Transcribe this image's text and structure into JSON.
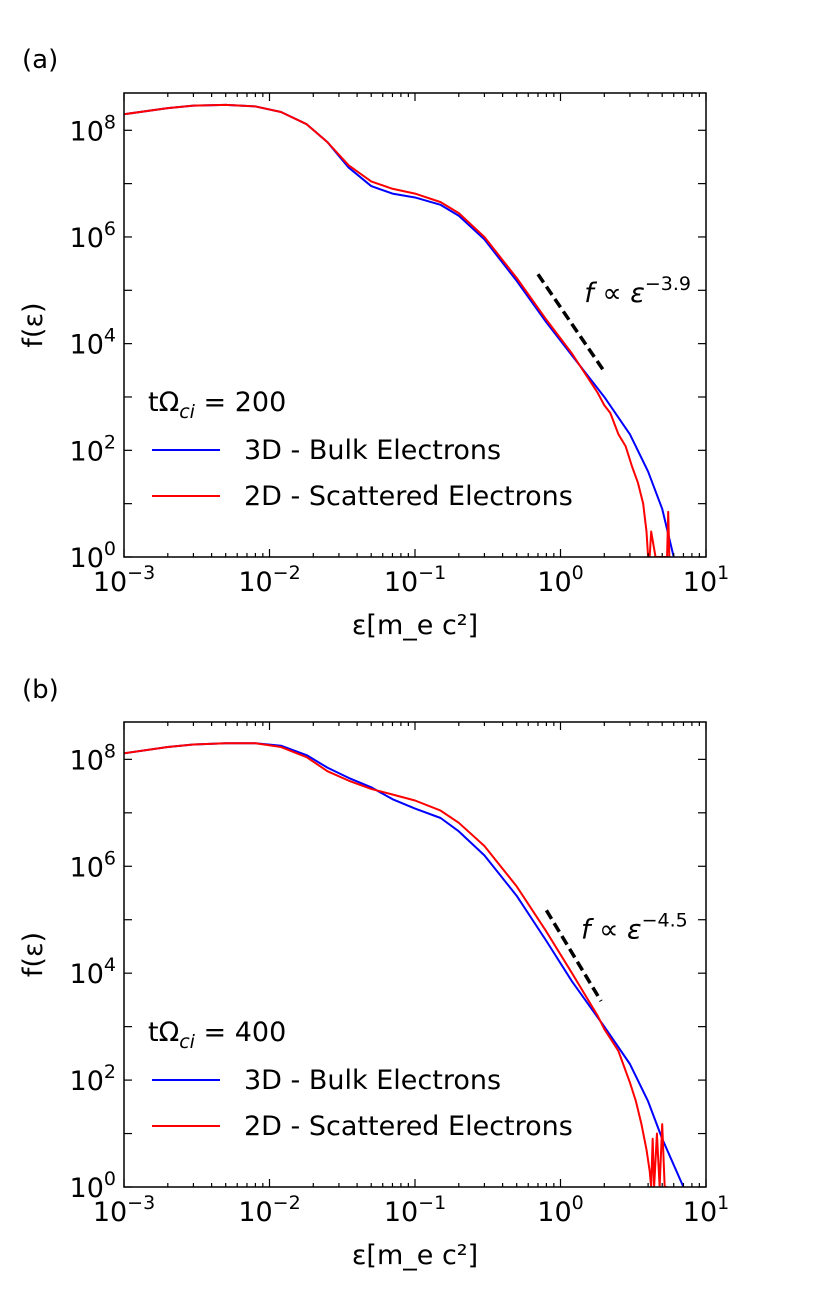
{
  "chart_data": [
    {
      "type": "line",
      "panel_label": "(a)",
      "xlabel": "ε[m_e c²]",
      "ylabel": "f(ε)",
      "xscale": "log",
      "yscale": "log",
      "xlim": [
        0.001,
        10
      ],
      "ylim": [
        1,
        500000000
      ],
      "x_ticks": [
        {
          "base": "10",
          "exp": "−3"
        },
        {
          "base": "10",
          "exp": "−2"
        },
        {
          "base": "10",
          "exp": "−1"
        },
        {
          "base": "10",
          "exp": "0"
        },
        {
          "base": "10",
          "exp": "1"
        }
      ],
      "y_ticks": [
        {
          "base": "10",
          "exp": "0"
        },
        {
          "base": "10",
          "exp": "2"
        },
        {
          "base": "10",
          "exp": "4"
        },
        {
          "base": "10",
          "exp": "6"
        },
        {
          "base": "10",
          "exp": "8"
        }
      ],
      "time_label": "tΩ",
      "time_sub": "ci",
      "time_value": " = 200",
      "legend_position": "lower-left",
      "series": [
        {
          "name": "3D - Bulk Electrons",
          "color": "#0000ff",
          "x": [
            0.001,
            0.002,
            0.003,
            0.005,
            0.008,
            0.012,
            0.018,
            0.025,
            0.035,
            0.05,
            0.07,
            0.1,
            0.15,
            0.2,
            0.3,
            0.5,
            0.8,
            1.2,
            2.0,
            3.0,
            4.0,
            5.0,
            6.0
          ],
          "y": [
            200000000,
            260000000,
            290000000,
            300000000,
            280000000,
            220000000,
            130000000,
            60000000,
            20000000,
            9000000,
            6500000,
            5500000,
            4000000,
            2500000,
            900000,
            150000,
            25000,
            6000,
            1000,
            200,
            40,
            8,
            1
          ]
        },
        {
          "name": "2D - Scattered Electrons",
          "color": "#ff0000",
          "x": [
            0.001,
            0.002,
            0.003,
            0.005,
            0.008,
            0.012,
            0.018,
            0.025,
            0.035,
            0.05,
            0.07,
            0.1,
            0.15,
            0.2,
            0.3,
            0.5,
            0.8,
            1.2,
            1.8,
            2.0,
            2.2,
            2.5,
            2.8,
            3.1,
            3.4,
            3.7,
            3.9,
            4.0,
            4.1,
            4.2,
            4.5,
            5.0,
            5.4,
            5.5,
            5.6
          ],
          "y": [
            200000000,
            260000000,
            290000000,
            300000000,
            280000000,
            220000000,
            130000000,
            60000000,
            22000000,
            11000000,
            8000000,
            6500000,
            4500000,
            2800000,
            1000000,
            170000,
            28000,
            6500,
            1200,
            700,
            500,
            200,
            120,
            50,
            25,
            10,
            3,
            1,
            1,
            3,
            1,
            1,
            1,
            7,
            1
          ]
        }
      ],
      "power_law": {
        "label": "f ∝ ε",
        "exponent": "−3.9",
        "x": [
          0.7,
          2.0
        ],
        "y": [
          200000,
          3000
        ]
      }
    },
    {
      "type": "line",
      "panel_label": "(b)",
      "xlabel": "ε[m_e c²]",
      "ylabel": "f(ε)",
      "xscale": "log",
      "yscale": "log",
      "xlim": [
        0.001,
        10
      ],
      "ylim": [
        1,
        500000000
      ],
      "x_ticks": [
        {
          "base": "10",
          "exp": "−3"
        },
        {
          "base": "10",
          "exp": "−2"
        },
        {
          "base": "10",
          "exp": "−1"
        },
        {
          "base": "10",
          "exp": "0"
        },
        {
          "base": "10",
          "exp": "1"
        }
      ],
      "y_ticks": [
        {
          "base": "10",
          "exp": "0"
        },
        {
          "base": "10",
          "exp": "2"
        },
        {
          "base": "10",
          "exp": "4"
        },
        {
          "base": "10",
          "exp": "6"
        },
        {
          "base": "10",
          "exp": "8"
        }
      ],
      "time_label": "tΩ",
      "time_sub": "ci",
      "time_value": " = 400",
      "legend_position": "lower-left",
      "series": [
        {
          "name": "3D - Bulk Electrons",
          "color": "#0000ff",
          "x": [
            0.001,
            0.002,
            0.003,
            0.005,
            0.008,
            0.012,
            0.018,
            0.025,
            0.035,
            0.05,
            0.07,
            0.1,
            0.15,
            0.2,
            0.3,
            0.5,
            0.8,
            1.2,
            2.0,
            3.0,
            4.0,
            5.0,
            7.0
          ],
          "y": [
            130000000,
            170000000,
            190000000,
            200000000,
            200000000,
            180000000,
            120000000,
            70000000,
            45000000,
            30000000,
            18000000,
            12000000,
            8000000,
            4500000,
            1600000,
            280000,
            40000,
            7000,
            1000,
            200,
            40,
            8,
            1
          ]
        },
        {
          "name": "2D - Scattered Electrons",
          "color": "#ff0000",
          "x": [
            0.001,
            0.002,
            0.003,
            0.005,
            0.008,
            0.012,
            0.018,
            0.025,
            0.035,
            0.05,
            0.07,
            0.1,
            0.15,
            0.2,
            0.3,
            0.5,
            0.8,
            1.2,
            1.8,
            2.0,
            2.5,
            3.0,
            3.3,
            3.6,
            3.9,
            4.1,
            4.2,
            4.3,
            4.4,
            4.6,
            4.8,
            5.0,
            5.2,
            5.4
          ],
          "y": [
            130000000,
            170000000,
            190000000,
            200000000,
            200000000,
            170000000,
            110000000,
            60000000,
            40000000,
            28000000,
            22000000,
            17000000,
            11000000,
            6500000,
            2400000,
            420000,
            60000,
            10000,
            1600,
            900,
            350,
            90,
            40,
            15,
            5,
            2,
            1,
            8,
            1,
            10,
            1,
            15,
            1,
            1
          ]
        }
      ],
      "power_law": {
        "label": "f ∝ ε",
        "exponent": "−4.5",
        "x": [
          0.8,
          1.9
        ],
        "y": [
          150000,
          3000
        ]
      }
    }
  ]
}
